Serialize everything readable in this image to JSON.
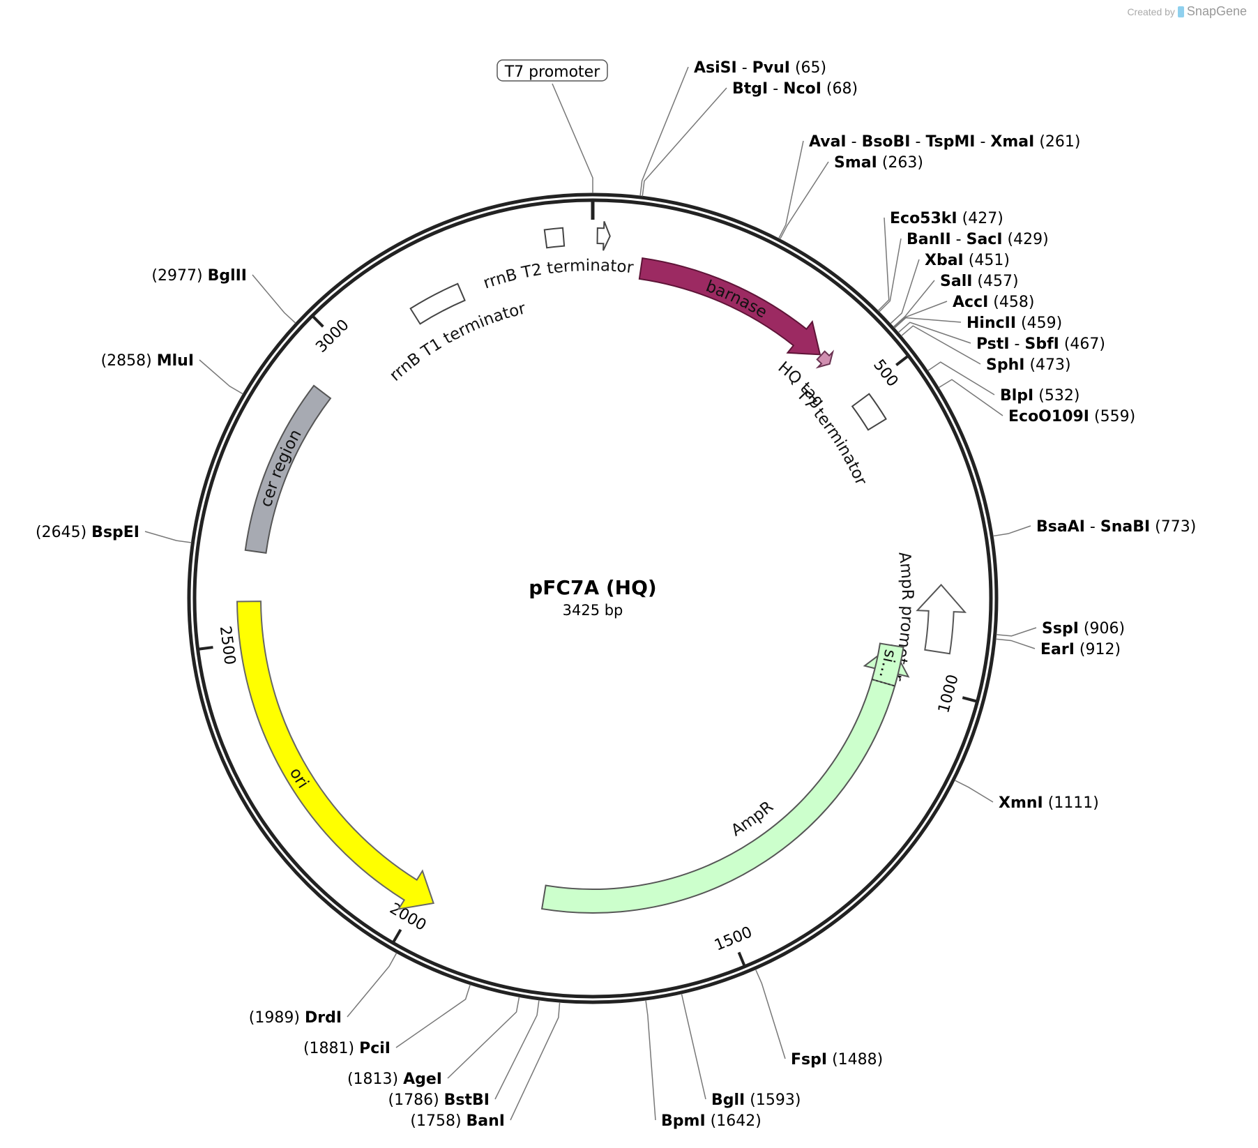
{
  "credit": {
    "prefix": "Created by",
    "brand": "SnapGene",
    "icon": "snapgene-logo-icon"
  },
  "plasmid": {
    "name": "pFC7A (HQ)",
    "length_label": "3425 bp",
    "length_bp": 3425
  },
  "ticks": [
    {
      "bp": 500,
      "label": "500"
    },
    {
      "bp": 1000,
      "label": "1000"
    },
    {
      "bp": 1500,
      "label": "1500"
    },
    {
      "bp": 2000,
      "label": "2000"
    },
    {
      "bp": 2500,
      "label": "2500"
    },
    {
      "bp": 3000,
      "label": "3000"
    }
  ],
  "features": [
    {
      "key": "barnase",
      "name": "barnase",
      "start": 80,
      "end": 410,
      "color": "#9c2a62",
      "stroke": "#5e1437",
      "label_color": "#ffffff",
      "direction": 1
    },
    {
      "key": "hq-tag",
      "name": "HQ tag",
      "start": 412,
      "end": 432,
      "color": "#d08fb0",
      "stroke": "#6b3352",
      "direction": 1
    },
    {
      "key": "t7-terminator",
      "name": "T7 terminator",
      "start": 510,
      "end": 558,
      "color": "#ffffff",
      "stroke": "#444444",
      "direction": 0
    },
    {
      "key": "ampr-promoter",
      "name": "AmpR promoter",
      "start": 836,
      "end": 941,
      "color": "#ffffff",
      "stroke": "#555555",
      "direction": -1
    },
    {
      "key": "ampr",
      "name": "AmpR",
      "start": 942,
      "end": 1802,
      "color": "#ccffcc",
      "stroke": "#555555",
      "direction": -1
    },
    {
      "key": "signal",
      "name": "si…",
      "start": 942,
      "end": 1011,
      "color": "#ccffcc",
      "stroke": "#555555",
      "direction": 0
    },
    {
      "key": "ori",
      "name": "ori",
      "start": 1976,
      "end": 2565,
      "color": "#ffff00",
      "stroke": "#666666",
      "direction": -1
    },
    {
      "key": "cer-region",
      "name": "cer region",
      "start": 2645,
      "end": 2925,
      "color": "#a7aab2",
      "stroke": "#555555",
      "direction": 0
    },
    {
      "key": "rrnb-t1",
      "name": "rrnB T1 terminator",
      "start": 3120,
      "end": 3205,
      "color": "#ffffff",
      "stroke": "#444444",
      "direction": 0
    },
    {
      "key": "rrnb-t2",
      "name": "rrnB T2 terminator",
      "start": 3355,
      "end": 3382,
      "color": "#ffffff",
      "stroke": "#444444",
      "direction": 0
    },
    {
      "key": "t7-promoter",
      "name": "T7 promoter",
      "start": 8,
      "end": 27,
      "color": "#ffffff",
      "stroke": "#444444",
      "direction": 1
    }
  ],
  "sites": [
    {
      "bp": 1,
      "parts": [
        "T7 promoter"
      ],
      "pos": "",
      "boxed": true
    },
    {
      "bp": 65,
      "parts": [
        "AsiSI",
        "PvuI"
      ],
      "pos": "(65)"
    },
    {
      "bp": 68,
      "parts": [
        "BtgI",
        "NcoI"
      ],
      "pos": "(68)"
    },
    {
      "bp": 261,
      "parts": [
        "AvaI",
        "BsoBI",
        "TspMI",
        "XmaI"
      ],
      "pos": "(261)"
    },
    {
      "bp": 263,
      "parts": [
        "SmaI"
      ],
      "pos": "(263)"
    },
    {
      "bp": 427,
      "parts": [
        "Eco53kI"
      ],
      "pos": "(427)"
    },
    {
      "bp": 429,
      "parts": [
        "BanII",
        "SacI"
      ],
      "pos": "(429)"
    },
    {
      "bp": 451,
      "parts": [
        "XbaI"
      ],
      "pos": "(451)"
    },
    {
      "bp": 457,
      "parts": [
        "SalI"
      ],
      "pos": "(457)"
    },
    {
      "bp": 458,
      "parts": [
        "AccI"
      ],
      "pos": "(458)"
    },
    {
      "bp": 459,
      "parts": [
        "HincII"
      ],
      "pos": "(459)"
    },
    {
      "bp": 467,
      "parts": [
        "PstI",
        "SbfI"
      ],
      "pos": "(467)"
    },
    {
      "bp": 473,
      "parts": [
        "SphI"
      ],
      "pos": "(473)"
    },
    {
      "bp": 532,
      "parts": [
        "BlpI"
      ],
      "pos": "(532)"
    },
    {
      "bp": 559,
      "parts": [
        "EcoO109I"
      ],
      "pos": "(559)"
    },
    {
      "bp": 773,
      "parts": [
        "BsaAI",
        "SnaBI"
      ],
      "pos": "(773)"
    },
    {
      "bp": 906,
      "parts": [
        "SspI"
      ],
      "pos": "(906)"
    },
    {
      "bp": 912,
      "parts": [
        "EarI"
      ],
      "pos": "(912)"
    },
    {
      "bp": 1111,
      "parts": [
        "XmnI"
      ],
      "pos": "(1111)"
    },
    {
      "bp": 1488,
      "parts": [
        "FspI"
      ],
      "pos": "(1488)"
    },
    {
      "bp": 1593,
      "parts": [
        "BglI"
      ],
      "pos": "(1593)"
    },
    {
      "bp": 1642,
      "parts": [
        "BpmI"
      ],
      "pos": "(1642)"
    },
    {
      "bp": 1758,
      "parts": [
        "BanI"
      ],
      "pos": "(1758)"
    },
    {
      "bp": 1786,
      "parts": [
        "BstBI"
      ],
      "pos": "(1786)"
    },
    {
      "bp": 1813,
      "parts": [
        "AgeI"
      ],
      "pos": "(1813)"
    },
    {
      "bp": 1881,
      "parts": [
        "PciI"
      ],
      "pos": "(1881)"
    },
    {
      "bp": 1989,
      "parts": [
        "DrdI"
      ],
      "pos": "(1989)"
    },
    {
      "bp": 2645,
      "parts": [
        "BspEI"
      ],
      "pos": "(2645)"
    },
    {
      "bp": 2858,
      "parts": [
        "MluI"
      ],
      "pos": "(2858)"
    },
    {
      "bp": 2977,
      "parts": [
        "BglII"
      ],
      "pos": "(2977)"
    }
  ]
}
